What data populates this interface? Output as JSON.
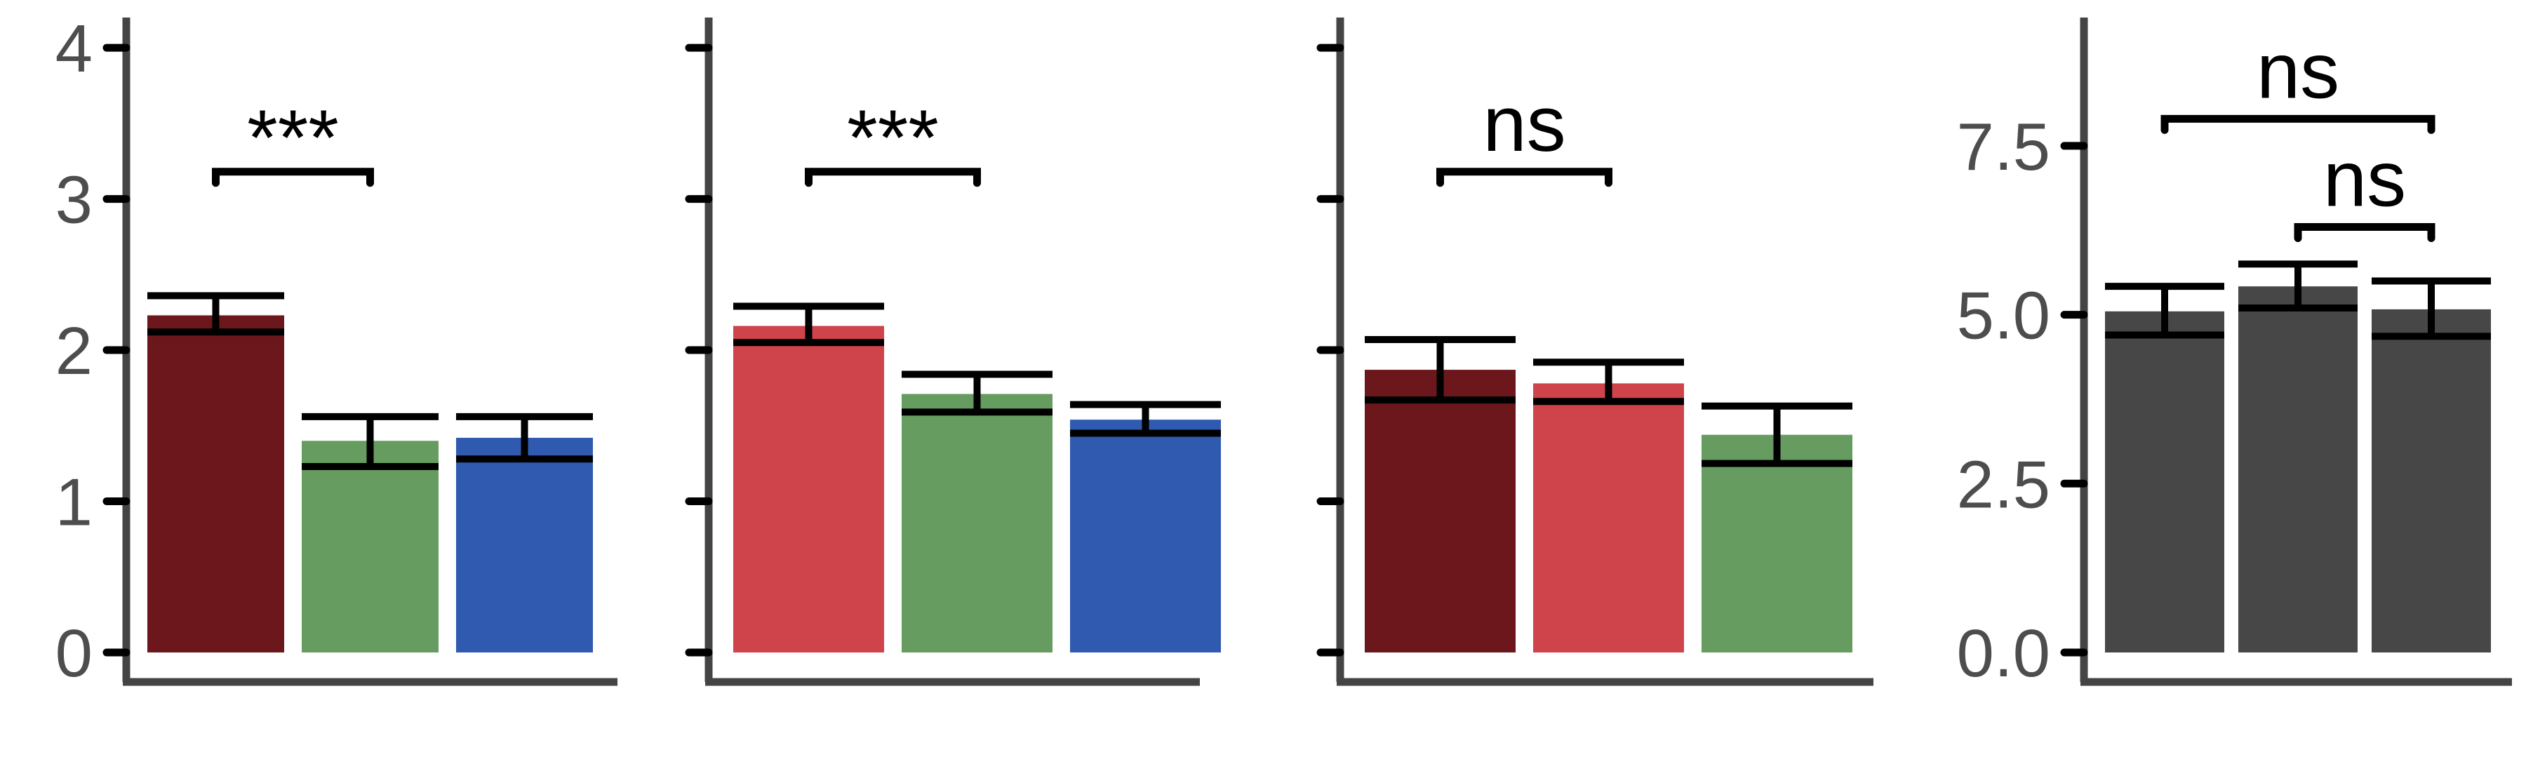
{
  "colors": {
    "dark_red": "#6b171b",
    "red": "#cf434b",
    "green": "#669c5f",
    "blue": "#2f5ab0",
    "gray": "#474747",
    "axis": "#444444",
    "errorbar": "#000000"
  },
  "chart_data": [
    {
      "type": "bar",
      "ylim": [
        0,
        4.2
      ],
      "yticks": [
        0,
        1,
        2,
        3,
        4
      ],
      "ytick_labels": [
        "0",
        "1",
        "2",
        "3",
        "4"
      ],
      "show_tick_labels": true,
      "bars": [
        {
          "value": 2.23,
          "err_low": 2.12,
          "err_high": 2.36,
          "color": "dark_red"
        },
        {
          "value": 1.4,
          "err_low": 1.23,
          "err_high": 1.56,
          "color": "green"
        },
        {
          "value": 1.42,
          "err_low": 1.28,
          "err_high": 1.56,
          "color": "blue"
        }
      ],
      "annotations": [
        {
          "label": "***",
          "from": 0,
          "to": 1,
          "y": 3.18
        }
      ]
    },
    {
      "type": "bar",
      "ylim": [
        0,
        4.2
      ],
      "yticks": [
        0,
        1,
        2,
        3,
        4
      ],
      "ytick_labels": [
        "",
        "",
        "",
        "",
        ""
      ],
      "show_tick_labels": false,
      "bars": [
        {
          "value": 2.16,
          "err_low": 2.05,
          "err_high": 2.29,
          "color": "red"
        },
        {
          "value": 1.71,
          "err_low": 1.59,
          "err_high": 1.84,
          "color": "green"
        },
        {
          "value": 1.54,
          "err_low": 1.45,
          "err_high": 1.64,
          "color": "blue"
        }
      ],
      "annotations": [
        {
          "label": "***",
          "from": 0,
          "to": 1,
          "y": 3.18
        }
      ]
    },
    {
      "type": "bar",
      "ylim": [
        0,
        4.2
      ],
      "yticks": [
        0,
        1,
        2,
        3,
        4
      ],
      "ytick_labels": [
        "",
        "",
        "",
        "",
        ""
      ],
      "show_tick_labels": false,
      "bars": [
        {
          "value": 1.87,
          "err_low": 1.67,
          "err_high": 2.07,
          "color": "dark_red"
        },
        {
          "value": 1.78,
          "err_low": 1.66,
          "err_high": 1.92,
          "color": "red"
        },
        {
          "value": 1.44,
          "err_low": 1.25,
          "err_high": 1.63,
          "color": "green"
        }
      ],
      "annotations": [
        {
          "label": "ns",
          "from": 0,
          "to": 1,
          "y": 3.18
        }
      ]
    },
    {
      "type": "bar",
      "ylim": [
        0,
        9.4
      ],
      "yticks": [
        0,
        2.5,
        5,
        7.5
      ],
      "ytick_labels": [
        "0.0",
        "2.5",
        "5.0",
        "7.5"
      ],
      "show_tick_labels": true,
      "bars": [
        {
          "value": 5.05,
          "err_low": 4.7,
          "err_high": 5.42,
          "color": "gray"
        },
        {
          "value": 5.42,
          "err_low": 5.1,
          "err_high": 5.75,
          "color": "gray"
        },
        {
          "value": 5.08,
          "err_low": 4.68,
          "err_high": 5.5,
          "color": "gray"
        }
      ],
      "annotations": [
        {
          "label": "ns",
          "from": 0,
          "to": 2,
          "y": 7.9
        },
        {
          "label": "ns",
          "from": 1,
          "to": 2,
          "y": 6.3
        }
      ]
    }
  ]
}
